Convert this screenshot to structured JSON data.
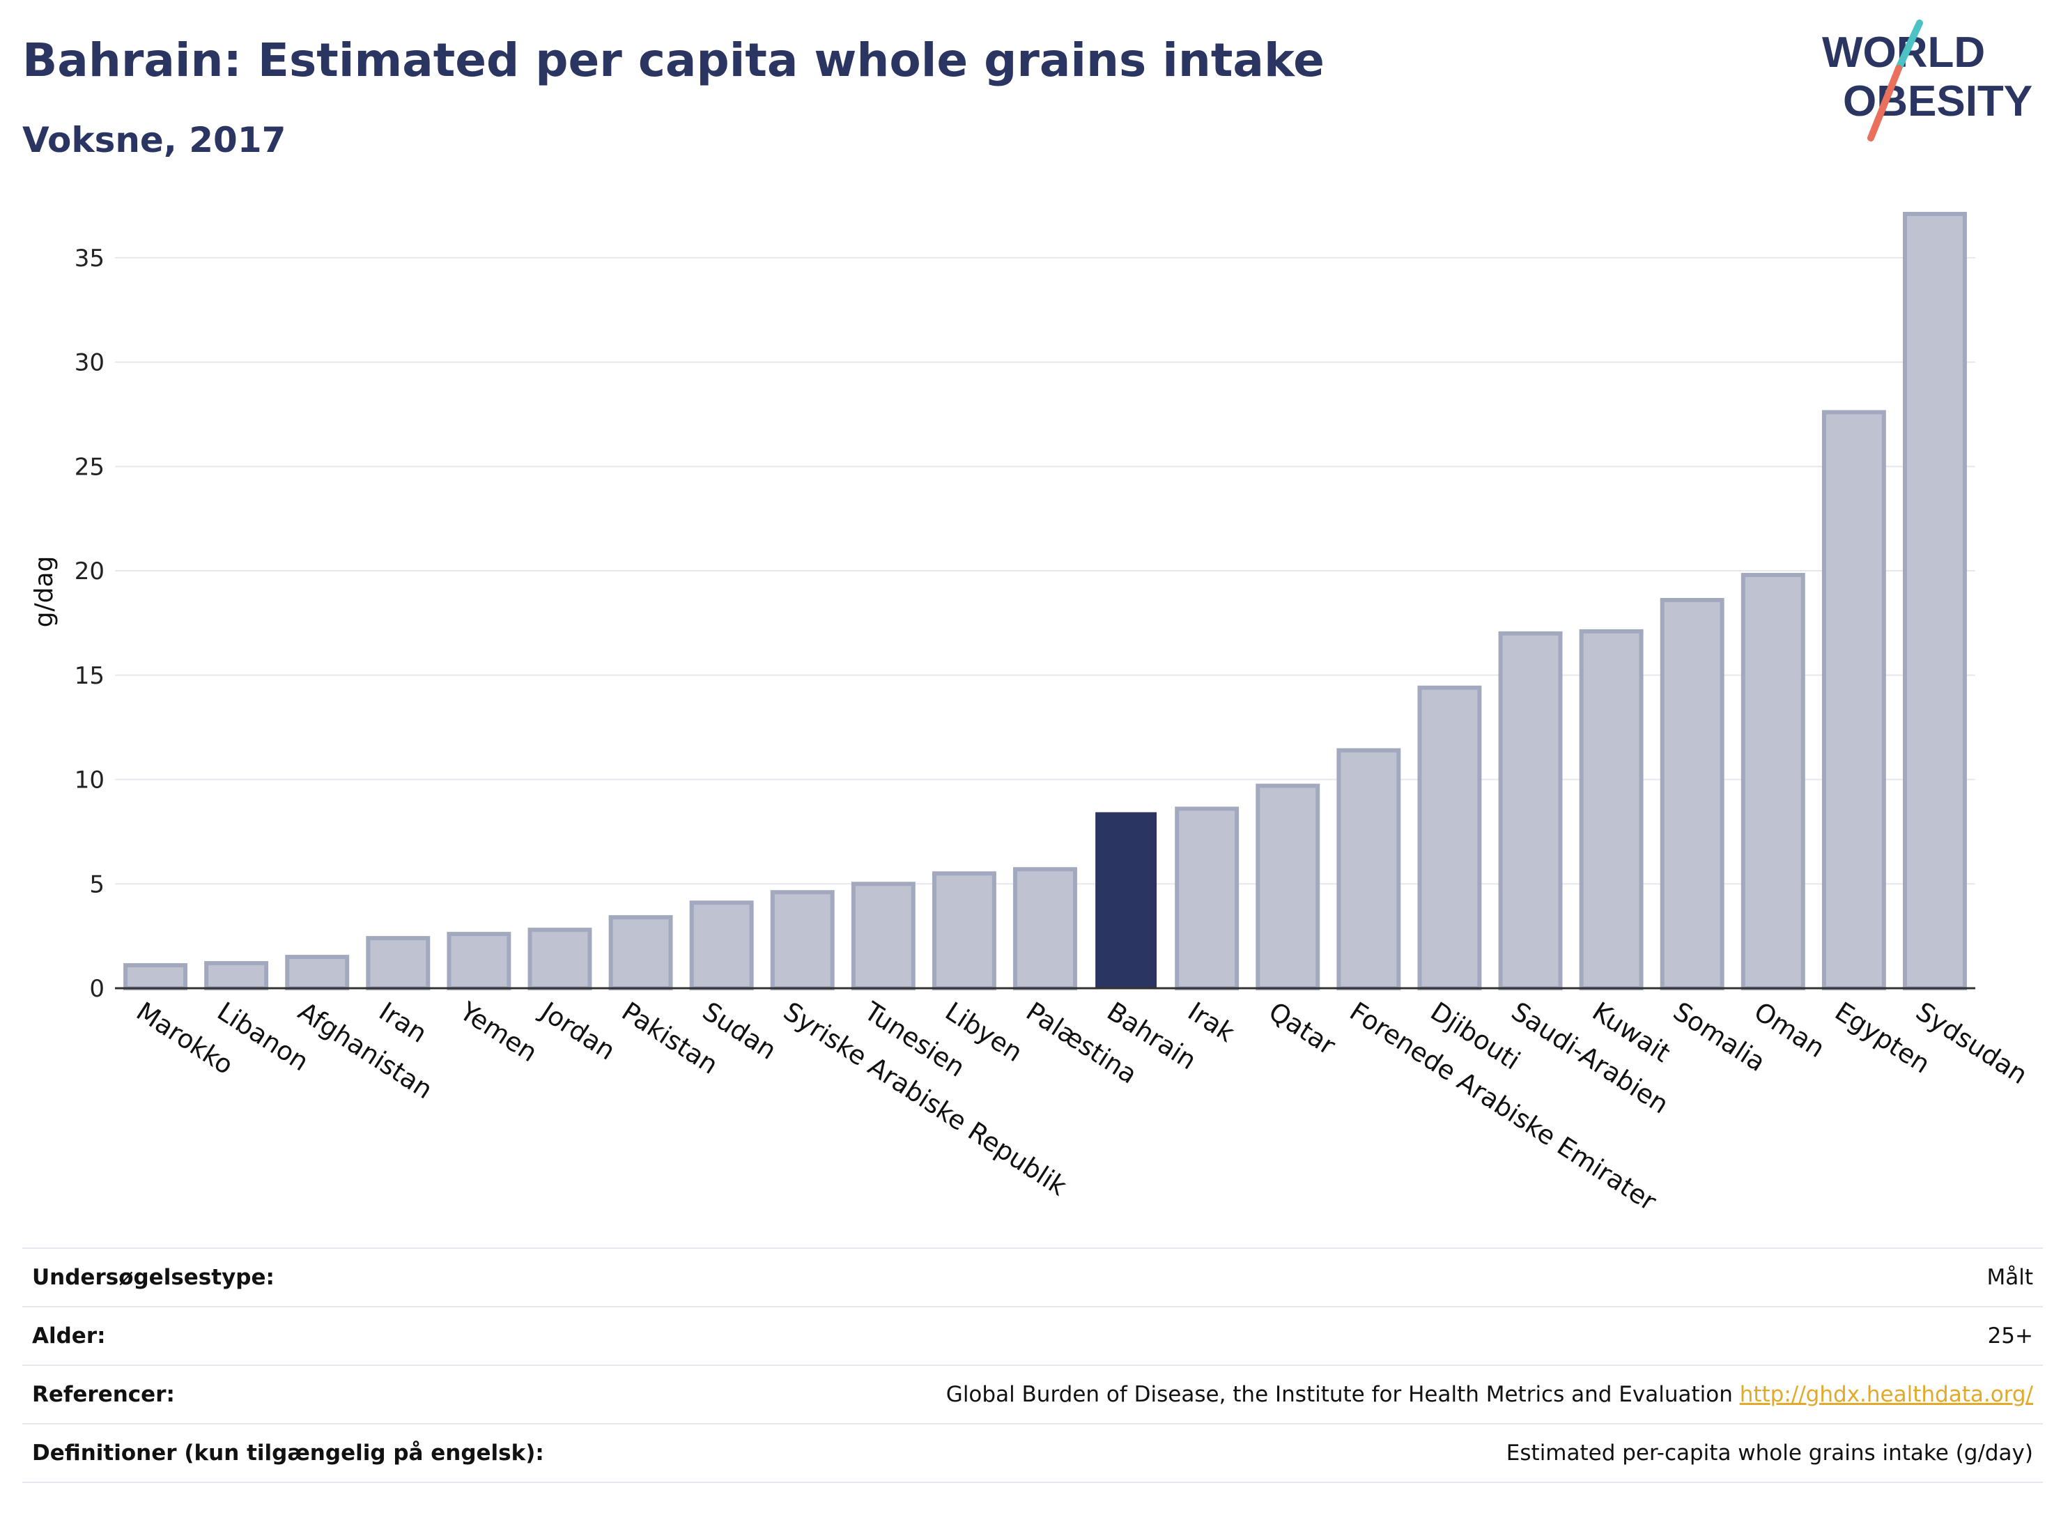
{
  "header": {
    "title": "Bahrain: Estimated per capita whole grains intake",
    "subtitle": "Voksne, 2017"
  },
  "logo": {
    "line1": "WORLD",
    "line2": "OBESITY"
  },
  "colors": {
    "highlight": "#2b3561",
    "bar": "#bfc3d1",
    "bar_stroke": "#a2a8be",
    "accent_teal": "#4cc2c4",
    "accent_coral": "#e8705c"
  },
  "chart_data": {
    "type": "bar",
    "ylabel": "g/dag",
    "xlabel": "",
    "ylim": [
      0,
      38
    ],
    "yticks": [
      0,
      5,
      10,
      15,
      20,
      25,
      30,
      35
    ],
    "grid": true,
    "highlight": "Bahrain",
    "categories": [
      "Marokko",
      "Libanon",
      "Afghanistan",
      "Iran",
      "Yemen",
      "Jordan",
      "Pakistan",
      "Sudan",
      "Syriske Arabiske Republik",
      "Tunesien",
      "Libyen",
      "Palæstina",
      "Bahrain",
      "Irak",
      "Qatar",
      "Forenede Arabiske Emirater",
      "Djibouti",
      "Saudi-Arabien",
      "Kuwait",
      "Somalia",
      "Oman",
      "Egypten",
      "Sydsudan"
    ],
    "values": [
      1.1,
      1.2,
      1.5,
      2.4,
      2.6,
      2.8,
      3.4,
      4.1,
      4.6,
      5.0,
      5.5,
      5.7,
      8.4,
      8.6,
      9.7,
      11.4,
      14.4,
      17.0,
      17.1,
      18.6,
      19.8,
      27.6,
      37.1
    ]
  },
  "info": {
    "survey_type_label": "Undersøgelsestype:",
    "survey_type_value": "Målt",
    "age_label": "Alder:",
    "age_value": "25+",
    "references_label": "Referencer:",
    "references_value": "Global Burden of Disease, the Institute for Health Metrics and Evaluation",
    "references_link": "http://ghdx.healthdata.org/",
    "definitions_label": "Definitioner (kun tilgængelig på engelsk):",
    "definitions_value": "Estimated per-capita whole grains intake (g/day)"
  }
}
